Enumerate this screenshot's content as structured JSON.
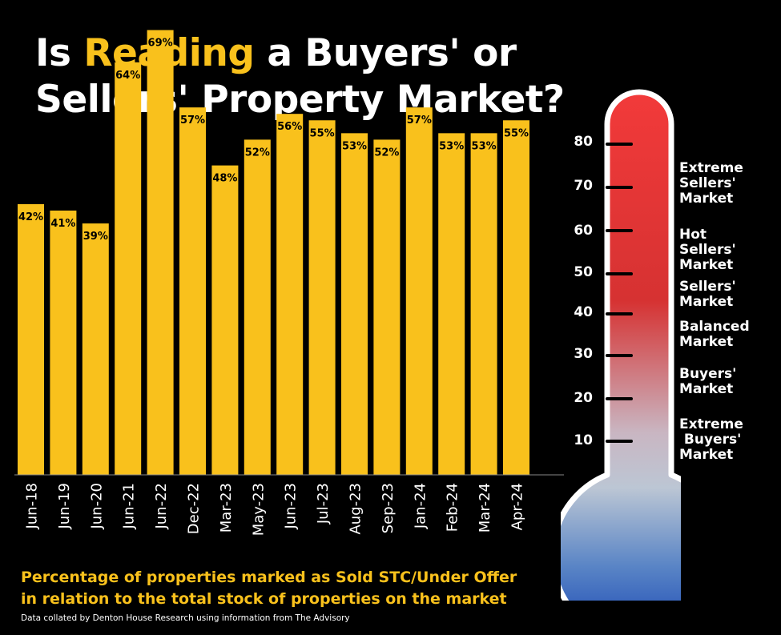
{
  "title": {
    "line1_pre": "Is ",
    "line1_highlight": "Reading",
    "line1_post": " a Buyers' or",
    "line2": "Sellers' Property Market?"
  },
  "colors": {
    "bar": "#f9c11c",
    "highlight": "#f9c11c",
    "background": "#000000"
  },
  "chart_data": {
    "type": "bar",
    "categories": [
      "Jun-18",
      "Jun-19",
      "Jun-20",
      "Jun-21",
      "Jun-22",
      "Dec-22",
      "Mar-23",
      "May-23",
      "Jun-23",
      "Jul-23",
      "Aug-23",
      "Sep-23",
      "Jan-24",
      "Feb-24",
      "Mar-24",
      "Apr-24"
    ],
    "values": [
      42,
      41,
      39,
      64,
      69,
      57,
      48,
      52,
      56,
      55,
      53,
      52,
      57,
      53,
      53,
      55
    ],
    "value_labels": [
      "42%",
      "41%",
      "39%",
      "64%",
      "69%",
      "57%",
      "48%",
      "52%",
      "56%",
      "55%",
      "53%",
      "52%",
      "57%",
      "53%",
      "53%",
      "55%"
    ],
    "ylim": [
      0,
      80
    ],
    "grid": false,
    "legend": "none"
  },
  "caption": {
    "line1": "Percentage of properties marked as Sold STC/Under Offer",
    "line2": "in relation to the total stock of properties on the market"
  },
  "source": "Data collated by Denton House Research using information from The Advisory",
  "thermometer": {
    "scale": [
      "80",
      "70",
      "60",
      "50",
      "40",
      "30",
      "20",
      "10"
    ],
    "zones": [
      "Extreme\nSellers'\nMarket",
      "Hot\nSellers'\nMarket",
      "Sellers'\nMarket",
      "Balanced\nMarket",
      "Buyers'\nMarket",
      "Extreme\n Buyers'\nMarket"
    ]
  }
}
